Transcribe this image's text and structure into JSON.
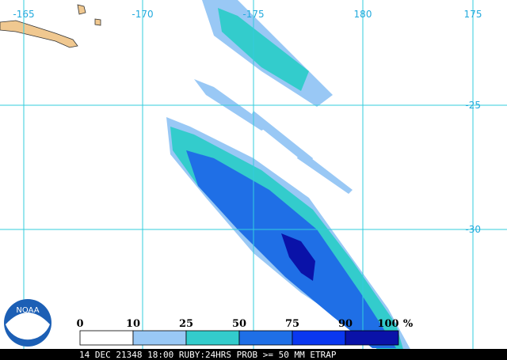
{
  "map": {
    "lon_labels": [
      "-165",
      "-170",
      "-175",
      "180",
      "175"
    ],
    "lat_labels": [
      "-25",
      "-30"
    ]
  },
  "legend": {
    "labels": [
      "0",
      "10",
      "25",
      "50",
      "75",
      "90",
      "100"
    ],
    "unit": "%",
    "colors": [
      "#ffffff",
      "#99c8f5",
      "#33cccc",
      "#1f6fe6",
      "#0a37f0",
      "#0a12a8"
    ]
  },
  "footer": "14 DEC 21348 18:00 RUBY:24HRS PROB >= 50 MM ETRAP",
  "logo": "NOAA"
}
